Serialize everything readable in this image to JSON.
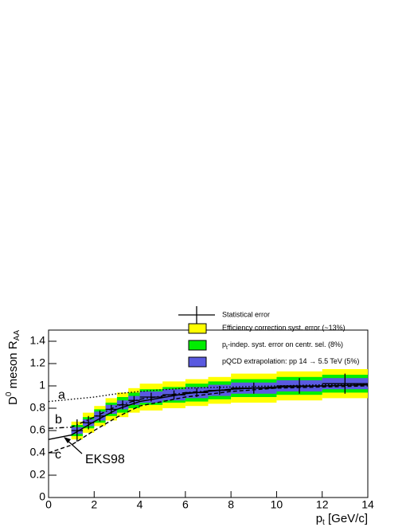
{
  "chart_data": {
    "type": "errorbar",
    "y_title": {
      "main": "D",
      "sup": "0",
      "mid": " meson R",
      "sub": "AA"
    },
    "x_title": {
      "main": "p",
      "sub": "t",
      "rest": " [GeV/c]"
    },
    "xlim": [
      0,
      14
    ],
    "ylim": [
      0,
      1.5
    ],
    "xticks": [
      0,
      2,
      4,
      6,
      8,
      10,
      12,
      14
    ],
    "yticks": [
      0,
      0.2,
      0.4,
      0.6,
      0.8,
      1,
      1.2,
      1.4
    ],
    "points": {
      "name": "Statistical error",
      "color": "#000000",
      "x": [
        1.25,
        1.75,
        2.25,
        2.75,
        3.25,
        3.75,
        4.5,
        5.5,
        6.5,
        7.5,
        9,
        11,
        13
      ],
      "xerr": [
        0.25,
        0.25,
        0.25,
        0.25,
        0.25,
        0.25,
        0.5,
        0.5,
        0.5,
        0.5,
        1,
        1,
        1
      ],
      "values": [
        0.6,
        0.67,
        0.73,
        0.79,
        0.83,
        0.87,
        0.9,
        0.92,
        0.94,
        0.96,
        0.98,
        1.0,
        1.02
      ],
      "errors": [
        0.1,
        0.06,
        0.05,
        0.04,
        0.04,
        0.04,
        0.04,
        0.04,
        0.04,
        0.04,
        0.05,
        0.07,
        0.09
      ]
    },
    "bands": [
      {
        "name": [
          {
            "text": "Efficiency correction syst. error (~13%)"
          }
        ],
        "color": "#ffff00",
        "errors": [
          0.08,
          0.09,
          0.09,
          0.1,
          0.11,
          0.11,
          0.12,
          0.12,
          0.12,
          0.12,
          0.13,
          0.13,
          0.13
        ]
      },
      {
        "name": [
          {
            "text": "p"
          },
          {
            "text": "t",
            "sub": true
          },
          {
            "text": "-indep. syst. error on centr. sel. (8%)"
          }
        ],
        "color": "#00ee00",
        "errors": [
          0.05,
          0.05,
          0.06,
          0.06,
          0.07,
          0.07,
          0.07,
          0.07,
          0.08,
          0.08,
          0.08,
          0.08,
          0.08
        ]
      },
      {
        "name": [
          {
            "text": "pQCD extrapolation: pp 14 → 5.5 TeV (5%)"
          }
        ],
        "color": "#5a5ae0",
        "errors": [
          0.03,
          0.03,
          0.04,
          0.04,
          0.04,
          0.04,
          0.05,
          0.05,
          0.05,
          0.05,
          0.05,
          0.05,
          0.05
        ]
      }
    ],
    "curves": [
      {
        "label": "a",
        "style": "dotted",
        "x": [
          0,
          1,
          2,
          3,
          4,
          6,
          8,
          10,
          12,
          14
        ],
        "values": [
          0.86,
          0.88,
          0.9,
          0.93,
          0.95,
          0.98,
          0.99,
          1.0,
          1.01,
          1.02
        ]
      },
      {
        "label": "b",
        "style": "dashdot",
        "x": [
          0,
          1,
          2,
          3,
          4,
          6,
          8,
          10,
          12,
          14
        ],
        "values": [
          0.62,
          0.63,
          0.72,
          0.82,
          0.88,
          0.94,
          0.97,
          0.99,
          1.0,
          1.01
        ]
      },
      {
        "label": "EKS98",
        "style": "solid",
        "x": [
          0,
          1,
          2,
          3,
          4,
          6,
          8,
          10,
          12,
          14
        ],
        "values": [
          0.52,
          0.56,
          0.68,
          0.79,
          0.86,
          0.93,
          0.97,
          0.99,
          1.0,
          1.01
        ]
      },
      {
        "label": "c",
        "style": "dashed",
        "x": [
          0,
          1,
          2,
          3,
          4,
          6,
          8,
          10,
          12,
          14
        ],
        "values": [
          0.4,
          0.47,
          0.6,
          0.72,
          0.82,
          0.9,
          0.95,
          0.98,
          0.99,
          1.0
        ]
      }
    ]
  }
}
